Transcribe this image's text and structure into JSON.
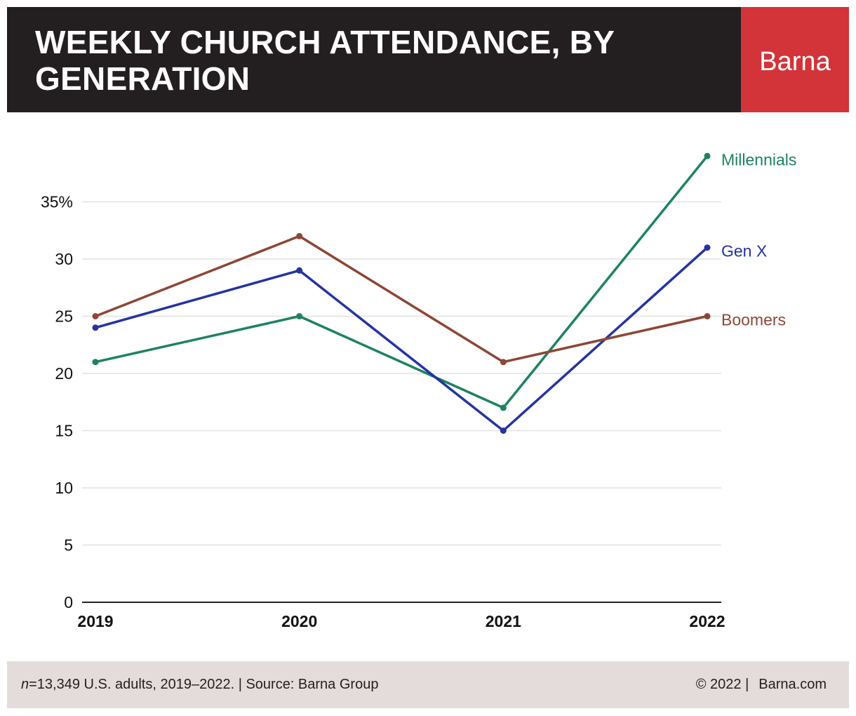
{
  "header": {
    "title": "WEEKLY CHURCH ATTENDANCE, BY GENERATION",
    "brand": "Barna"
  },
  "colors": {
    "header_bg": "#231f20",
    "brand_bg": "#d23439",
    "footer_bg": "#e3dcda",
    "millennials": "#1e8260",
    "genx": "#2633a0",
    "boomers": "#8d4637"
  },
  "chart_data": {
    "type": "line",
    "title": "WEEKLY CHURCH ATTENDANCE, BY GENERATION",
    "xlabel": "",
    "ylabel": "",
    "x": [
      "2019",
      "2020",
      "2021",
      "2022"
    ],
    "ylim": [
      0,
      35
    ],
    "yticks": [
      "0",
      "5",
      "10",
      "15",
      "20",
      "25",
      "30",
      "35%"
    ],
    "grid": true,
    "legend": "direct labels at line ends",
    "series": [
      {
        "name": "Millennials",
        "values": [
          21,
          25,
          17,
          39
        ],
        "color": "#1e8260"
      },
      {
        "name": "Gen X",
        "values": [
          24,
          29,
          15,
          31
        ],
        "color": "#2633a0"
      },
      {
        "name": "Boomers",
        "values": [
          25,
          32,
          21,
          25
        ],
        "color": "#8d4637"
      }
    ]
  },
  "footer": {
    "n_label": "n",
    "note": "=13,349 U.S. adults, 2019–2022. | Source: Barna Group",
    "copyright": "© 2022 |",
    "site": "Barna.com"
  }
}
